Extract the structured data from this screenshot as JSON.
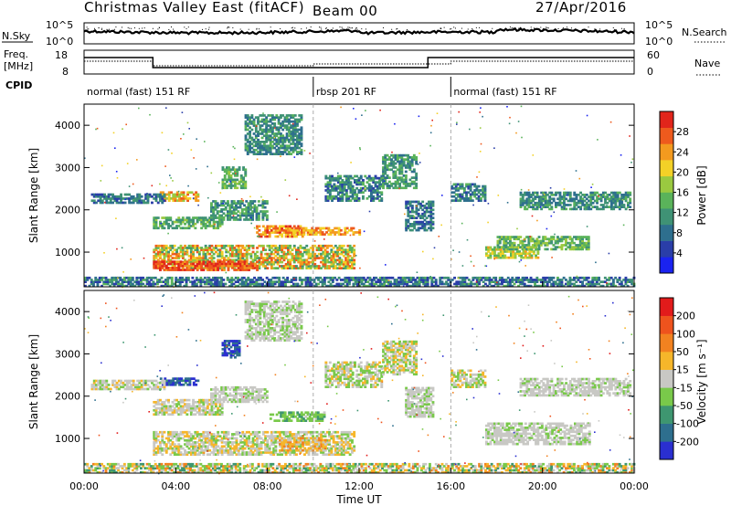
{
  "header": {
    "title": "Christmas Valley East (fitACF)",
    "beam": "Beam 00",
    "date": "27/Apr/2016"
  },
  "summary_panels": {
    "nsky_label": "N.Sky",
    "nsearch_label": "N.Search",
    "freq_label_line1": "Freq.",
    "freq_label_line2": "[MHz]",
    "nave_label": "Nave",
    "cpid_label": "CPID",
    "nsky_ticks": [
      "10^5",
      "10^0"
    ],
    "nsearch_ticks": [
      "10^5",
      "10^0"
    ],
    "freq_ticks": [
      "18",
      "8"
    ],
    "nave_ticks": [
      "60",
      "0"
    ],
    "cpid_segments": [
      {
        "label": "normal (fast) 151 RF",
        "start_hour": 0,
        "end_hour": 10
      },
      {
        "label": "rbsp 201 RF",
        "start_hour": 10,
        "end_hour": 16
      },
      {
        "label": "normal (fast) 151 RF",
        "start_hour": 16,
        "end_hour": 24
      }
    ]
  },
  "chart_data": [
    {
      "type": "heatmap",
      "name": "power-panel",
      "ylabel": "Slant Range [km]",
      "xlim": [
        0,
        24
      ],
      "ylim": [
        180,
        4500
      ],
      "yticks": [
        1000,
        2000,
        3000,
        4000
      ],
      "colorbar": {
        "label": "Power [dB]",
        "ticks": [
          "28",
          "24",
          "20",
          "16",
          "12",
          "8",
          "4"
        ],
        "colors": [
          "#1a23f0",
          "#2a3ea8",
          "#2e6f8e",
          "#3f9275",
          "#5ab35a",
          "#9ac940",
          "#f3d127",
          "#f39a1f",
          "#ee5a1d",
          "#e1251b"
        ]
      },
      "regions": [
        {
          "t0": 3.0,
          "t1": 11.8,
          "r0": 600,
          "r1": 1150,
          "v0": 0.35,
          "v1": 0.9
        },
        {
          "t0": 3.0,
          "t1": 7.5,
          "r0": 560,
          "r1": 800,
          "v0": 0.75,
          "v1": 1.0
        },
        {
          "t0": 3.0,
          "t1": 6.0,
          "r0": 1550,
          "r1": 1800,
          "v0": 0.3,
          "v1": 0.55
        },
        {
          "t0": 3.3,
          "t1": 5.0,
          "r0": 2200,
          "r1": 2400,
          "v0": 0.5,
          "v1": 0.85
        },
        {
          "t0": 5.5,
          "t1": 8.0,
          "r0": 1750,
          "r1": 2200,
          "v0": 0.25,
          "v1": 0.5
        },
        {
          "t0": 6.0,
          "t1": 7.0,
          "r0": 2500,
          "r1": 3000,
          "v0": 0.3,
          "v1": 0.55
        },
        {
          "t0": 7.0,
          "t1": 9.5,
          "r0": 3300,
          "r1": 4250,
          "v0": 0.2,
          "v1": 0.45
        },
        {
          "t0": 7.5,
          "t1": 9.5,
          "r0": 1350,
          "r1": 1600,
          "v0": 0.6,
          "v1": 0.95
        },
        {
          "t0": 9.0,
          "t1": 12.0,
          "r0": 1400,
          "r1": 1550,
          "v0": 0.6,
          "v1": 0.9
        },
        {
          "t0": 10.5,
          "t1": 13.0,
          "r0": 2200,
          "r1": 2800,
          "v0": 0.15,
          "v1": 0.45
        },
        {
          "t0": 13.0,
          "t1": 14.5,
          "r0": 2500,
          "r1": 3300,
          "v0": 0.25,
          "v1": 0.5
        },
        {
          "t0": 14.0,
          "t1": 15.2,
          "r0": 1500,
          "r1": 2200,
          "v0": 0.15,
          "v1": 0.4
        },
        {
          "t0": 16.0,
          "t1": 17.5,
          "r0": 2200,
          "r1": 2600,
          "v0": 0.15,
          "v1": 0.45
        },
        {
          "t0": 17.5,
          "t1": 19.8,
          "r0": 850,
          "r1": 1100,
          "v0": 0.4,
          "v1": 0.75
        },
        {
          "t0": 18.0,
          "t1": 22.0,
          "r0": 1050,
          "r1": 1350,
          "v0": 0.3,
          "v1": 0.6
        },
        {
          "t0": 19.0,
          "t1": 23.8,
          "r0": 2000,
          "r1": 2400,
          "v0": 0.2,
          "v1": 0.45
        },
        {
          "t0": 0.3,
          "t1": 3.5,
          "r0": 2150,
          "r1": 2350,
          "v0": 0.15,
          "v1": 0.4
        },
        {
          "t0": 0.0,
          "t1": 24.0,
          "r0": 180,
          "r1": 380,
          "v0": 0.1,
          "v1": 0.45
        }
      ]
    },
    {
      "type": "heatmap",
      "name": "velocity-panel",
      "ylabel": "Slant Range [km]",
      "xlabel": "Time UT",
      "xlim": [
        0,
        24
      ],
      "ylim": [
        180,
        4500
      ],
      "yticks": [
        1000,
        2000,
        3000,
        4000
      ],
      "xticks": [
        "00:00",
        "04:00",
        "08:00",
        "12:00",
        "16:00",
        "20:00",
        "00:00"
      ],
      "xtick_hours": [
        0,
        4,
        8,
        12,
        16,
        20,
        24
      ],
      "colorbar": {
        "label": "Velocity [m s⁻¹]",
        "ticks": [
          "200",
          "100",
          "50",
          "15",
          "-15",
          "-50",
          "-100",
          "-200"
        ],
        "colors": [
          "#2a2fd0",
          "#2e6f8e",
          "#3e9670",
          "#79c94a",
          "#c8c8c4",
          "#f6b62a",
          "#f28220",
          "#ee531d",
          "#e21b1b"
        ]
      },
      "regions": [
        {
          "t0": 3.0,
          "t1": 11.8,
          "r0": 600,
          "r1": 1150,
          "v0": 0.38,
          "v1": 0.62
        },
        {
          "t0": 8.5,
          "t1": 10.5,
          "r0": 700,
          "r1": 1000,
          "v0": 0.5,
          "v1": 0.72
        },
        {
          "t0": 3.0,
          "t1": 6.0,
          "r0": 1550,
          "r1": 1900,
          "v0": 0.4,
          "v1": 0.6
        },
        {
          "t0": 3.3,
          "t1": 5.0,
          "r0": 2250,
          "r1": 2400,
          "v0": 0.0,
          "v1": 0.25
        },
        {
          "t0": 5.5,
          "t1": 8.0,
          "r0": 1850,
          "r1": 2200,
          "v0": 0.4,
          "v1": 0.55
        },
        {
          "t0": 6.0,
          "t1": 6.8,
          "r0": 2900,
          "r1": 3300,
          "v0": 0.0,
          "v1": 0.2
        },
        {
          "t0": 7.0,
          "t1": 9.5,
          "r0": 3300,
          "r1": 4250,
          "v0": 0.4,
          "v1": 0.55
        },
        {
          "t0": 8.0,
          "t1": 10.5,
          "r0": 1400,
          "r1": 1600,
          "v0": 0.3,
          "v1": 0.45
        },
        {
          "t0": 10.5,
          "t1": 13.0,
          "r0": 2200,
          "r1": 2800,
          "v0": 0.35,
          "v1": 0.6
        },
        {
          "t0": 13.0,
          "t1": 14.5,
          "r0": 2500,
          "r1": 3300,
          "v0": 0.35,
          "v1": 0.65
        },
        {
          "t0": 14.0,
          "t1": 15.2,
          "r0": 1500,
          "r1": 2200,
          "v0": 0.4,
          "v1": 0.55
        },
        {
          "t0": 16.0,
          "t1": 17.5,
          "r0": 2200,
          "r1": 2600,
          "v0": 0.35,
          "v1": 0.6
        },
        {
          "t0": 17.5,
          "t1": 22.0,
          "r0": 850,
          "r1": 1350,
          "v0": 0.42,
          "v1": 0.55
        },
        {
          "t0": 19.0,
          "t1": 23.8,
          "r0": 2000,
          "r1": 2400,
          "v0": 0.42,
          "v1": 0.55
        },
        {
          "t0": 0.3,
          "t1": 3.5,
          "r0": 2150,
          "r1": 2350,
          "v0": 0.4,
          "v1": 0.6
        },
        {
          "t0": 0.0,
          "t1": 24.0,
          "r0": 180,
          "r1": 380,
          "v0": 0.25,
          "v1": 0.75
        }
      ]
    }
  ]
}
